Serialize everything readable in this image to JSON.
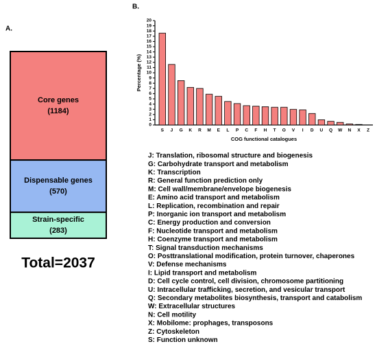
{
  "chart_data": [
    {
      "type": "block",
      "panel_label": "A.",
      "categories": [
        "Core genes",
        "Dispensable genes",
        "Strain-specific"
      ],
      "values": [
        1184,
        570,
        283
      ],
      "value_labels": [
        "(1184)",
        "(570)",
        "(283)"
      ],
      "colors": [
        "#f4807e",
        "#96b8f2",
        "#a9f2d6"
      ],
      "annotation": "Total=2037"
    },
    {
      "type": "bar",
      "panel_label": "B.",
      "y_label": "Percentage (%)",
      "x_label": "COG functional catalogues",
      "categories": [
        "S",
        "J",
        "G",
        "K",
        "R",
        "M",
        "E",
        "L",
        "P",
        "C",
        "F",
        "H",
        "T",
        "O",
        "V",
        "I",
        "D",
        "U",
        "Q",
        "W",
        "N",
        "X",
        "Z"
      ],
      "values": [
        17.6,
        11.6,
        8.5,
        7.2,
        7.0,
        5.9,
        5.5,
        4.5,
        4.1,
        3.7,
        3.6,
        3.5,
        3.4,
        3.4,
        3.0,
        2.9,
        2.2,
        1.0,
        0.7,
        0.5,
        0.2,
        0.1,
        0
      ],
      "color": "#f4807e",
      "ylim": [
        0,
        20
      ],
      "yticks": [
        0,
        1,
        2,
        3,
        4,
        5,
        6,
        7,
        8,
        9,
        10,
        11,
        12,
        13,
        14,
        15,
        16,
        17,
        18,
        19,
        20
      ],
      "annotations": [
        "J: Translation, ribosomal structure and biogenesis",
        "G: Carbohydrate transport and metabolism",
        "K: Transcription",
        "R: General function prediction only",
        "M: Cell wall/membrane/envelope biogenesis",
        "E: Amino acid transport and metabolism",
        "L: Replication, recombination and repair",
        "P: Inorganic ion transport and metabolism",
        "C: Energy production and conversion",
        "F: Nucleotide transport and metabolism",
        "H: Coenzyme transport and metabolism",
        "T: Signal transduction mechanisms",
        "O: Posttranslational modification, protein turnover, chaperones",
        "V: Defense mechanisms",
        "I: Lipid transport and metabolism",
        "D: Cell cycle control, cell division, chromosome partitioning",
        "U: Intracellular trafficking, secretion, and vesicular transport",
        "Q: Secondary metabolites biosynthesis, transport and catabolism",
        "W: Extracellular structures",
        "N: Cell motility",
        "X: Mobilome: prophages, transposons",
        "Z: Cytoskeleton",
        "S: Function unknown"
      ]
    }
  ]
}
